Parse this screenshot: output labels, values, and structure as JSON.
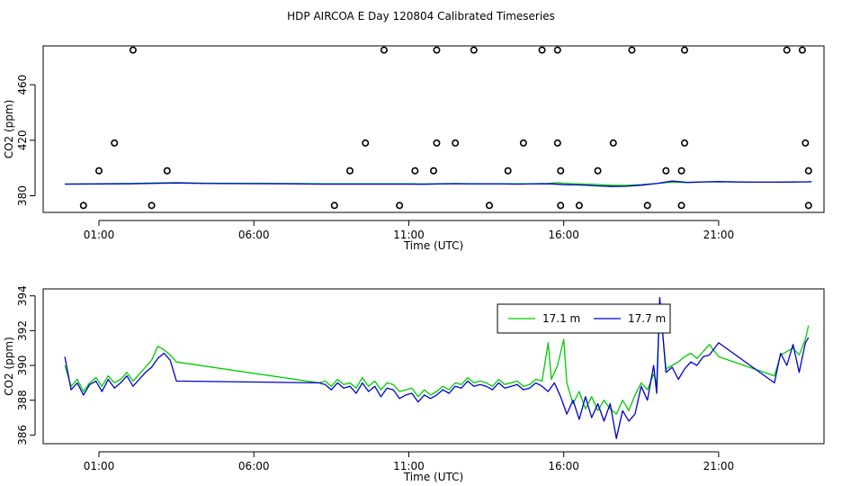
{
  "title": "HDP AIRCOA E  Day 120804  Calibrated Timeseries",
  "chart_data": [
    {
      "type": "scatter",
      "xlabel": "Time (UTC)",
      "ylabel": "CO2 (ppm)",
      "xlim": [
        -0.8,
        24.4
      ],
      "ylim": [
        368,
        488
      ],
      "x_ticks": [
        1,
        6,
        11,
        16,
        21
      ],
      "x_tick_labels": [
        "01:00",
        "06:00",
        "11:00",
        "16:00",
        "21:00"
      ],
      "y_ticks": [
        380,
        420,
        460
      ],
      "y_tick_labels": [
        "380",
        "420",
        "460"
      ],
      "grid": false,
      "points": [
        [
          0.5,
          373
        ],
        [
          1.0,
          398
        ],
        [
          1.5,
          418
        ],
        [
          2.1,
          485
        ],
        [
          2.7,
          373
        ],
        [
          3.2,
          398
        ],
        [
          8.6,
          373
        ],
        [
          9.1,
          398
        ],
        [
          9.6,
          418
        ],
        [
          10.2,
          485
        ],
        [
          10.7,
          373
        ],
        [
          11.2,
          398
        ],
        [
          11.8,
          398
        ],
        [
          11.9,
          418
        ],
        [
          11.9,
          485
        ],
        [
          12.5,
          418
        ],
        [
          13.1,
          485
        ],
        [
          13.6,
          373
        ],
        [
          14.2,
          398
        ],
        [
          14.7,
          418
        ],
        [
          15.3,
          485
        ],
        [
          15.8,
          485
        ],
        [
          15.8,
          418
        ],
        [
          15.9,
          398
        ],
        [
          15.9,
          373
        ],
        [
          16.5,
          373
        ],
        [
          17.1,
          398
        ],
        [
          17.6,
          418
        ],
        [
          18.2,
          485
        ],
        [
          18.7,
          373
        ],
        [
          19.3,
          398
        ],
        [
          19.8,
          398
        ],
        [
          19.8,
          373
        ],
        [
          19.9,
          418
        ],
        [
          19.9,
          485
        ],
        [
          23.2,
          485
        ],
        [
          23.7,
          485
        ],
        [
          23.8,
          418
        ],
        [
          23.9,
          398
        ],
        [
          23.9,
          373
        ]
      ],
      "series": [
        {
          "color": "#00cc00",
          "x": [
            -0.1,
            2.0,
            3.0,
            3.5,
            4.5,
            7.0,
            8.2,
            9.0,
            10.0,
            11.0,
            11.5,
            12.0,
            12.5,
            13.0,
            14.0,
            14.5,
            15.0,
            15.5,
            15.8,
            16.0,
            16.5,
            17.0,
            17.5,
            18.0,
            18.5,
            19.0,
            19.5,
            20.0,
            20.5,
            21.0,
            22.0,
            23.0,
            23.4,
            23.8,
            24.0
          ],
          "y": [
            388.5,
            388.8,
            389.3,
            389.5,
            389.0,
            388.8,
            388.6,
            388.6,
            388.6,
            388.6,
            388.5,
            388.7,
            388.8,
            388.7,
            388.7,
            388.6,
            388.7,
            388.8,
            389.5,
            389.0,
            388.5,
            388.2,
            387.6,
            387.5,
            388.0,
            388.8,
            389.8,
            389.5,
            390.0,
            390.2,
            389.8,
            389.8,
            389.9,
            390.0,
            390.1
          ]
        },
        {
          "color": "#0000cc",
          "x": [
            -0.1,
            2.0,
            3.0,
            3.5,
            4.5,
            7.0,
            8.2,
            9.0,
            10.0,
            11.0,
            11.5,
            12.0,
            12.5,
            13.0,
            14.0,
            14.5,
            15.0,
            15.5,
            15.8,
            16.0,
            16.5,
            17.0,
            17.5,
            18.0,
            18.5,
            19.0,
            19.5,
            20.0,
            20.5,
            21.0,
            22.0,
            23.0,
            23.4,
            23.8,
            24.0
          ],
          "y": [
            388.4,
            388.6,
            389.0,
            389.2,
            388.8,
            388.6,
            388.4,
            388.4,
            388.4,
            388.4,
            388.3,
            388.5,
            388.6,
            388.5,
            388.5,
            388.4,
            388.5,
            388.6,
            388.3,
            388.0,
            387.8,
            387.2,
            386.7,
            386.8,
            387.6,
            388.8,
            390.6,
            389.6,
            390.0,
            390.2,
            389.8,
            389.8,
            389.9,
            390.0,
            390.1
          ]
        }
      ]
    },
    {
      "type": "line",
      "xlabel": "Time (UTC)",
      "ylabel": "CO2 (ppm)",
      "xlim": [
        -0.8,
        24.4
      ],
      "ylim": [
        385.5,
        394.4
      ],
      "x_ticks": [
        1,
        6,
        11,
        16,
        21
      ],
      "x_tick_labels": [
        "01:00",
        "06:00",
        "11:00",
        "16:00",
        "21:00"
      ],
      "y_ticks": [
        386,
        388,
        390,
        392,
        394
      ],
      "y_tick_labels": [
        "386",
        "388",
        "390",
        "392",
        "394"
      ],
      "grid": false,
      "legend": "top-right",
      "series": [
        {
          "name": "17.1 m",
          "color": "#00cc00",
          "x": [
            -0.1,
            0.1,
            0.3,
            0.5,
            0.7,
            0.9,
            1.1,
            1.3,
            1.5,
            1.7,
            1.9,
            2.1,
            2.3,
            2.5,
            2.7,
            2.9,
            3.1,
            3.3,
            3.5,
            8.1,
            8.3,
            8.5,
            8.7,
            8.9,
            9.1,
            9.3,
            9.5,
            9.7,
            9.9,
            10.1,
            10.3,
            10.5,
            10.7,
            10.9,
            11.1,
            11.3,
            11.5,
            11.7,
            11.9,
            12.1,
            12.3,
            12.5,
            12.7,
            12.9,
            13.1,
            13.3,
            13.5,
            13.7,
            13.9,
            14.1,
            14.3,
            14.5,
            14.7,
            14.9,
            15.1,
            15.3,
            15.5,
            15.6,
            15.8,
            16.0,
            16.1,
            16.3,
            16.5,
            16.7,
            16.9,
            17.1,
            17.3,
            17.5,
            17.7,
            17.9,
            18.1,
            18.3,
            18.5,
            18.7,
            18.9,
            19.0,
            19.1,
            19.3,
            19.5,
            19.7,
            19.9,
            20.1,
            20.3,
            20.5,
            20.7,
            21.0,
            22.8,
            23.0,
            23.2,
            23.4,
            23.6,
            23.8,
            23.9
          ],
          "y": [
            390.0,
            388.8,
            389.2,
            388.5,
            389.0,
            389.3,
            388.8,
            389.4,
            389.0,
            389.2,
            389.6,
            389.1,
            389.5,
            389.9,
            390.3,
            391.1,
            390.9,
            390.6,
            390.2,
            389.0,
            389.1,
            388.8,
            389.2,
            388.9,
            389.0,
            388.7,
            389.3,
            388.8,
            389.1,
            388.6,
            389.0,
            388.9,
            388.5,
            388.6,
            388.7,
            388.2,
            388.6,
            388.3,
            388.5,
            388.8,
            388.6,
            389.0,
            388.9,
            389.3,
            389.0,
            389.1,
            389.0,
            388.8,
            389.2,
            388.9,
            389.0,
            389.1,
            388.8,
            388.9,
            389.2,
            389.1,
            391.3,
            389.2,
            390.0,
            391.5,
            389.0,
            387.8,
            388.5,
            387.5,
            388.2,
            387.4,
            388.0,
            387.5,
            387.2,
            388.0,
            387.4,
            388.3,
            389.0,
            388.6,
            389.5,
            389.0,
            393.6,
            389.8,
            390.0,
            390.2,
            390.5,
            390.7,
            390.4,
            390.8,
            391.2,
            390.5,
            389.4,
            390.6,
            390.8,
            391.0,
            390.6,
            391.5,
            392.3
          ]
        },
        {
          "name": "17.7 m",
          "color": "#0000cc",
          "x": [
            -0.1,
            0.1,
            0.3,
            0.5,
            0.7,
            0.9,
            1.1,
            1.3,
            1.5,
            1.7,
            1.9,
            2.1,
            2.3,
            2.5,
            2.7,
            2.9,
            3.1,
            3.3,
            3.5,
            8.1,
            8.3,
            8.5,
            8.7,
            8.9,
            9.1,
            9.3,
            9.5,
            9.7,
            9.9,
            10.1,
            10.3,
            10.5,
            10.7,
            10.9,
            11.1,
            11.3,
            11.5,
            11.7,
            11.9,
            12.1,
            12.3,
            12.5,
            12.7,
            12.9,
            13.1,
            13.3,
            13.5,
            13.7,
            13.9,
            14.1,
            14.3,
            14.5,
            14.7,
            14.9,
            15.1,
            15.3,
            15.5,
            15.7,
            15.9,
            16.1,
            16.3,
            16.5,
            16.7,
            16.9,
            17.1,
            17.3,
            17.5,
            17.7,
            17.9,
            18.1,
            18.3,
            18.5,
            18.7,
            18.9,
            19.0,
            19.1,
            19.3,
            19.5,
            19.7,
            19.9,
            20.1,
            20.3,
            20.5,
            20.7,
            21.0,
            22.8,
            23.0,
            23.2,
            23.4,
            23.6,
            23.8,
            23.9
          ],
          "y": [
            390.5,
            388.6,
            389.0,
            388.3,
            388.9,
            389.1,
            388.5,
            389.2,
            388.7,
            389.0,
            389.4,
            388.8,
            389.2,
            389.6,
            389.9,
            390.4,
            390.7,
            390.3,
            389.1,
            389.0,
            388.9,
            388.6,
            389.0,
            388.7,
            388.8,
            388.4,
            389.0,
            388.5,
            388.8,
            388.2,
            388.7,
            388.6,
            388.1,
            388.3,
            388.4,
            387.9,
            388.3,
            388.1,
            388.3,
            388.6,
            388.4,
            388.8,
            388.7,
            389.1,
            388.8,
            388.9,
            388.8,
            388.6,
            389.0,
            388.7,
            388.8,
            388.9,
            388.6,
            388.7,
            389.0,
            388.8,
            388.5,
            389.0,
            388.2,
            387.2,
            388.0,
            386.9,
            388.2,
            387.0,
            387.8,
            386.8,
            387.8,
            385.8,
            387.4,
            386.8,
            387.2,
            388.8,
            388.0,
            390.0,
            388.4,
            393.9,
            389.6,
            389.9,
            389.2,
            389.8,
            390.2,
            390.0,
            390.5,
            390.6,
            391.3,
            389.0,
            390.7,
            390.0,
            391.2,
            389.6,
            391.3,
            391.6
          ]
        }
      ]
    }
  ]
}
